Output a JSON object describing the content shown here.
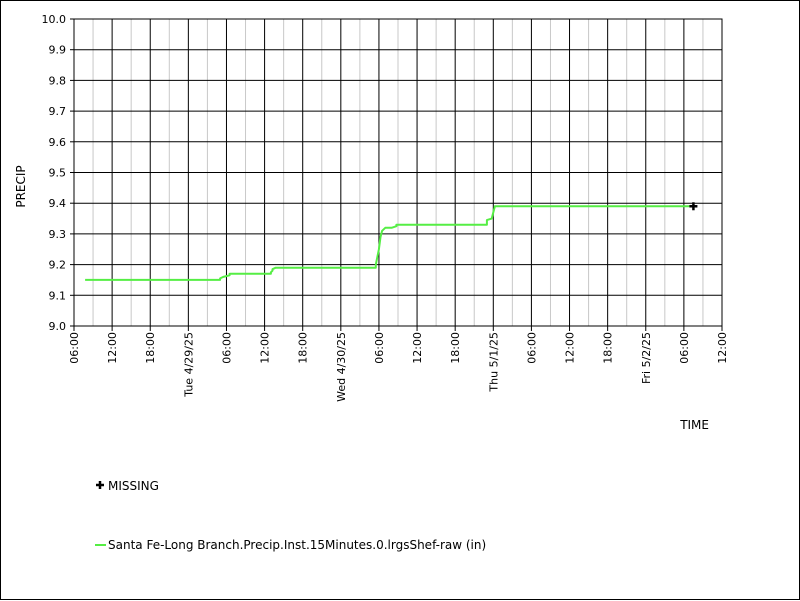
{
  "chart_data": {
    "type": "line",
    "xlabel": "TIME",
    "ylabel": "PRECIP",
    "ylim": [
      9.0,
      10.0
    ],
    "yticks": [
      "9.0",
      "9.1",
      "9.2",
      "9.3",
      "9.4",
      "9.5",
      "9.6",
      "9.7",
      "9.8",
      "9.9",
      "10.0"
    ],
    "xlim_hours": [
      0,
      102
    ],
    "xticks": [
      {
        "h": 0,
        "label": "06:00",
        "major": false
      },
      {
        "h": 6,
        "label": "12:00",
        "major": false
      },
      {
        "h": 12,
        "label": "18:00",
        "major": false
      },
      {
        "h": 18,
        "label": "Tue 4/29/25",
        "major": true
      },
      {
        "h": 24,
        "label": "06:00",
        "major": false
      },
      {
        "h": 30,
        "label": "12:00",
        "major": false
      },
      {
        "h": 36,
        "label": "18:00",
        "major": false
      },
      {
        "h": 42,
        "label": "Wed 4/30/25",
        "major": true
      },
      {
        "h": 48,
        "label": "06:00",
        "major": false
      },
      {
        "h": 54,
        "label": "12:00",
        "major": false
      },
      {
        "h": 60,
        "label": "18:00",
        "major": false
      },
      {
        "h": 66,
        "label": "Thu 5/1/25",
        "major": true
      },
      {
        "h": 72,
        "label": "06:00",
        "major": false
      },
      {
        "h": 78,
        "label": "12:00",
        "major": false
      },
      {
        "h": 84,
        "label": "18:00",
        "major": false
      },
      {
        "h": 90,
        "label": "Fri 5/2/25",
        "major": true
      },
      {
        "h": 96,
        "label": "06:00",
        "major": false
      },
      {
        "h": 102,
        "label": "12:00",
        "major": false
      }
    ],
    "series": [
      {
        "name": "Santa Fe-Long Branch.Precip.Inst.15Minutes.0.lrgsShef-raw (in)",
        "color": "#55ee44",
        "x_hours": [
          1.75,
          23.0,
          23.0,
          23.5,
          23.5,
          24.5,
          24.5,
          31.0,
          31.0,
          31.25,
          31.25,
          31.75,
          31.75,
          47.5,
          47.5,
          48.0,
          48.25,
          48.5,
          48.75,
          49.0,
          49.0,
          49.5,
          49.75,
          50.0,
          50.0,
          50.75,
          50.75,
          51.25,
          51.25,
          65.0,
          65.0,
          65.75,
          65.75,
          66.0,
          66.25,
          97.5
        ],
        "y": [
          9.15,
          9.15,
          9.155,
          9.16,
          9.16,
          9.165,
          9.17,
          9.17,
          9.175,
          9.18,
          9.185,
          9.19,
          9.19,
          9.19,
          9.2,
          9.25,
          9.29,
          9.31,
          9.315,
          9.32,
          9.32,
          9.32,
          9.32,
          9.32,
          9.32,
          9.325,
          9.33,
          9.33,
          9.33,
          9.33,
          9.345,
          9.35,
          9.35,
          9.37,
          9.39,
          9.39
        ]
      }
    ],
    "missing": {
      "label": "MISSING",
      "points": [
        {
          "h": 97.5,
          "y": 9.39
        }
      ]
    }
  }
}
